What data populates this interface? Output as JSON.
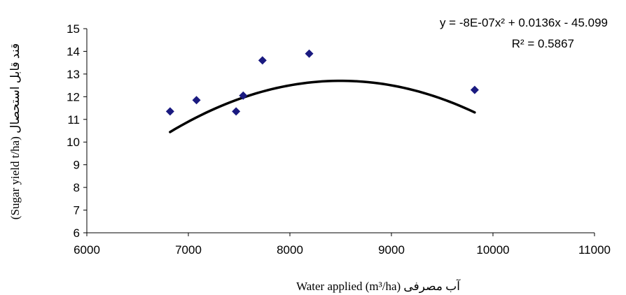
{
  "chart_data": {
    "type": "scatter",
    "title": "",
    "xlabel": "Water applied (m³/ha) آب مصرفی",
    "ylabel": "(Sugar yield t/ha) قند قابل استحصال",
    "xlim": [
      6000,
      11000
    ],
    "ylim": [
      6,
      15
    ],
    "xticks": [
      6000,
      7000,
      8000,
      9000,
      10000,
      11000
    ],
    "yticks": [
      6,
      7,
      8,
      9,
      10,
      11,
      12,
      13,
      14,
      15
    ],
    "grid": false,
    "legend": "none",
    "series": [
      {
        "marker": "diamond",
        "color": "#1a1a80",
        "points": [
          {
            "x": 6820,
            "y": 11.35
          },
          {
            "x": 7080,
            "y": 11.85
          },
          {
            "x": 7470,
            "y": 11.35
          },
          {
            "x": 7540,
            "y": 12.05
          },
          {
            "x": 7730,
            "y": 13.6
          },
          {
            "x": 8190,
            "y": 13.9
          },
          {
            "x": 9820,
            "y": 12.3
          }
        ]
      }
    ],
    "trendline": {
      "type": "polynomial",
      "color": "#000000",
      "x_range": [
        6820,
        9820
      ],
      "equation": "y = -8E-07x² + 0.0136x - 45.099",
      "r_squared": "R² = 0.5867"
    }
  }
}
